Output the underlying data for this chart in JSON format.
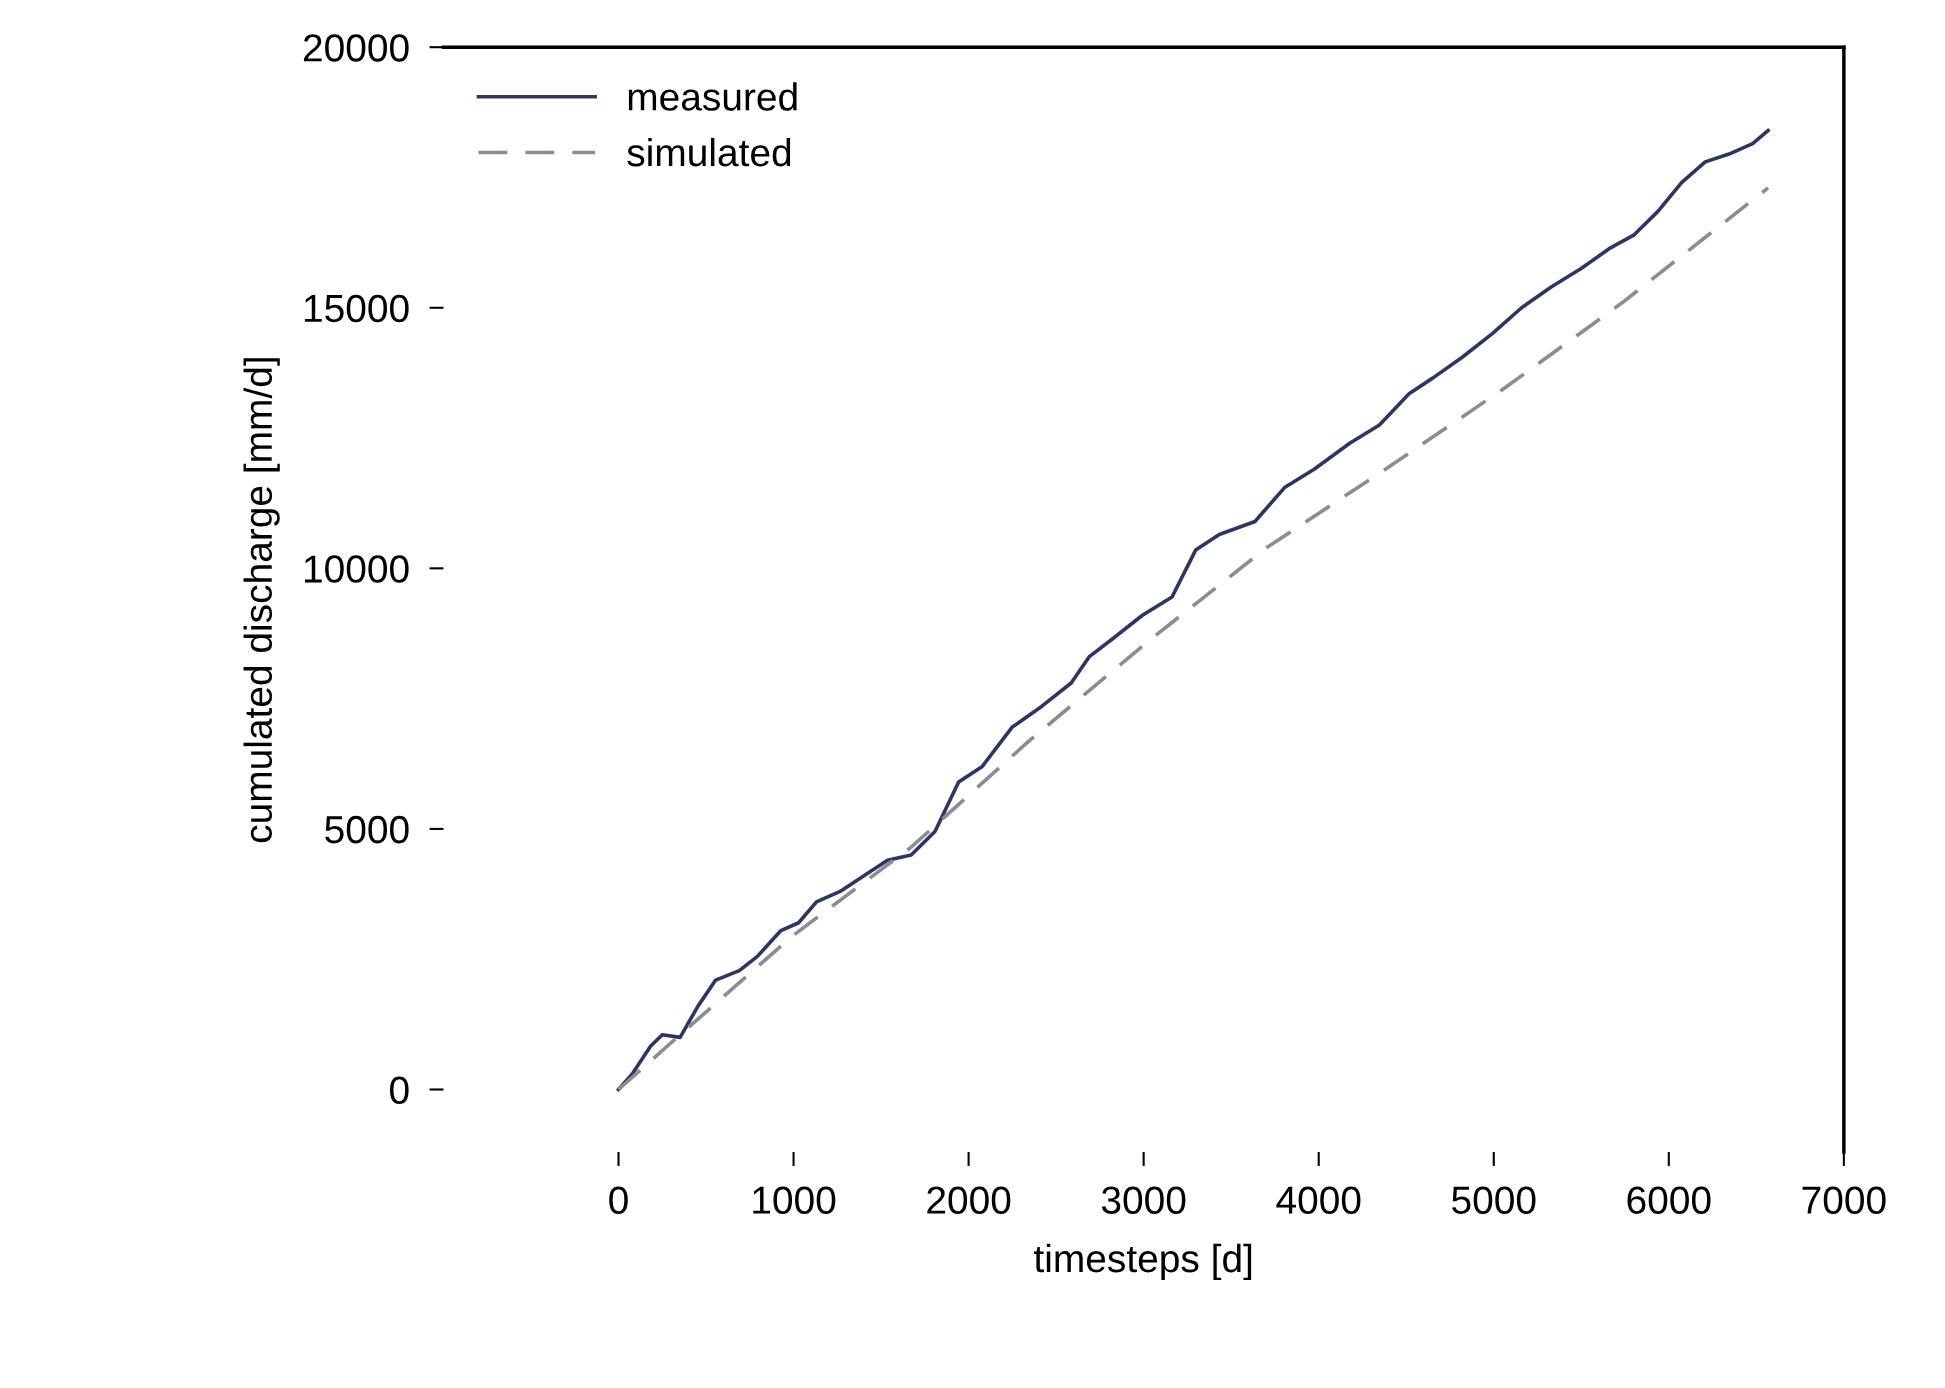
{
  "chart_data": {
    "type": "line",
    "xlabel": "timesteps [d]",
    "ylabel": "cumulated discharge [mm/d]",
    "series": [
      {
        "name": "measured",
        "color": "#2e3560",
        "line_style": "solid",
        "x": [
          0,
          81,
          183,
          250,
          352,
          454,
          555,
          690,
          792,
          928,
          1029,
          1131,
          1266,
          1402,
          1537,
          1672,
          1808,
          1943,
          2078,
          2248,
          2417,
          2586,
          2688,
          2823,
          2993,
          3162,
          3297,
          3432,
          3636,
          3805,
          3974,
          4177,
          4347,
          4516,
          4651,
          4820,
          4990,
          5159,
          5328,
          5497,
          5667,
          5802,
          5938,
          6073,
          6208,
          6344,
          6479,
          6567
        ],
        "values": [
          0,
          310,
          830,
          1050,
          1000,
          1600,
          2100,
          2280,
          2550,
          3050,
          3200,
          3600,
          3800,
          4100,
          4400,
          4500,
          4950,
          5900,
          6200,
          6950,
          7350,
          7800,
          8300,
          8650,
          9100,
          9450,
          10350,
          10650,
          10900,
          11550,
          11900,
          12400,
          12750,
          13350,
          13650,
          14050,
          14500,
          15000,
          15400,
          15750,
          16150,
          16400,
          16850,
          17400,
          17800,
          17950,
          18150,
          18400
        ]
      },
      {
        "name": "simulated",
        "color": "#8c8c94",
        "line_style": "dashed",
        "x": [
          0,
          318,
          995,
          1672,
          2349,
          3026,
          3704,
          4381,
          5058,
          5735,
          6567
        ],
        "values": [
          0,
          950,
          2950,
          4650,
          6700,
          8600,
          10400,
          11900,
          13450,
          15100,
          17300
        ]
      }
    ],
    "xlim": [
      -1000,
      7000
    ],
    "ylim": [
      -1200,
      20000
    ],
    "xticks": [
      0,
      1000,
      2000,
      3000,
      4000,
      5000,
      6000,
      7000
    ],
    "yticks": [
      0,
      5000,
      10000,
      15000,
      20000
    ],
    "grid": false,
    "legend": "top left",
    "marker": "none"
  }
}
